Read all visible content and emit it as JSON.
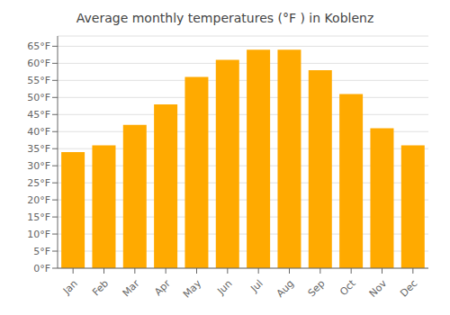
{
  "chart_data": {
    "type": "bar",
    "title": "Average monthly temperatures (°F ) in Koblenz",
    "categories": [
      "Jan",
      "Feb",
      "Mar",
      "Apr",
      "May",
      "Jun",
      "Jul",
      "Aug",
      "Sep",
      "Oct",
      "Nov",
      "Dec"
    ],
    "values": [
      34,
      36,
      42,
      48,
      56,
      61,
      64,
      64,
      58,
      51,
      41,
      36
    ],
    "color": "#FFAA00",
    "ylim": [
      0,
      68
    ],
    "yticks": [
      {
        "value": 0,
        "label": "0°F"
      },
      {
        "value": 5,
        "label": "5°F"
      },
      {
        "value": 10,
        "label": "10°F"
      },
      {
        "value": 15,
        "label": "15°F"
      },
      {
        "value": 20,
        "label": "20°F"
      },
      {
        "value": 25,
        "label": "25°F"
      },
      {
        "value": 30,
        "label": "30°F"
      },
      {
        "value": 35,
        "label": "35°F"
      },
      {
        "value": 40,
        "label": "40°F"
      },
      {
        "value": 45,
        "label": "45°F"
      },
      {
        "value": 50,
        "label": "50°F"
      },
      {
        "value": 55,
        "label": "55°F"
      },
      {
        "value": 60,
        "label": "60°F"
      },
      {
        "value": 65,
        "label": "65°F"
      }
    ],
    "grid": true
  }
}
